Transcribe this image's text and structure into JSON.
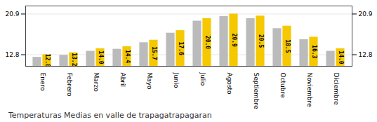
{
  "chart_data": {
    "type": "bar",
    "title": "Temperaturas Medias en valle de trapagatrapagaran",
    "categories": [
      "Enero",
      "Febrero",
      "Marzo",
      "Abril",
      "Mayo",
      "Junio",
      "Julio",
      "Agosto",
      "Septiembre",
      "Octubre",
      "Noviembre",
      "Diciembre"
    ],
    "series": [
      {
        "color": "#BBBBBB",
        "values": [
          12.3,
          12.7,
          13.5,
          13.9,
          15.2,
          17.1,
          19.5,
          20.4,
          20.0,
          18.0,
          15.8,
          13.5
        ]
      },
      {
        "color": "#F5C800",
        "values": [
          12.8,
          13.2,
          14.0,
          14.4,
          15.7,
          17.6,
          20.0,
          20.9,
          20.5,
          18.5,
          16.3,
          14.0
        ],
        "data_labels": true,
        "value_labels": [
          "12.8",
          "13.2",
          "14.0",
          "14.4",
          "15.7",
          "17.6",
          "20.0",
          "20.9",
          "20.5",
          "18.5",
          "16.3",
          "14.0"
        ]
      }
    ],
    "ylim": [
      10.5,
      22.5
    ],
    "yticks": [
      12.8,
      20.9
    ],
    "grid": true
  }
}
